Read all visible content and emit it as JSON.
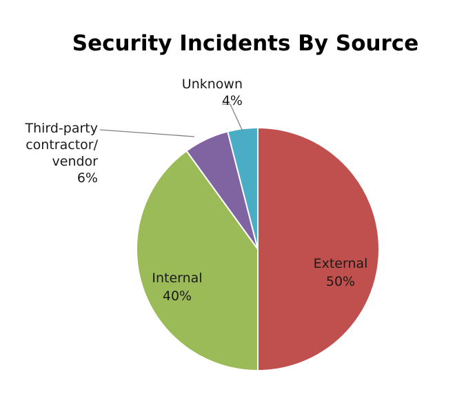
{
  "chart_data": {
    "type": "pie",
    "title": "Security Incidents By Source",
    "slices": [
      {
        "label": "External",
        "value": 50,
        "value_label": "50%",
        "color": "#c0504d"
      },
      {
        "label": "Internal",
        "value": 40,
        "value_label": "40%",
        "color": "#9bbb59"
      },
      {
        "label": "Third-party contractor/ vendor",
        "label_lines": [
          "Third-party",
          "contractor/",
          "vendor"
        ],
        "value": 6,
        "value_label": "6%",
        "color": "#8064a2"
      },
      {
        "label": "Unknown",
        "value": 4,
        "value_label": "4%",
        "color": "#4bacc6"
      }
    ],
    "start_angle": "12 o'clock",
    "direction": "clockwise",
    "legend": "none (data labels with leader lines)"
  }
}
